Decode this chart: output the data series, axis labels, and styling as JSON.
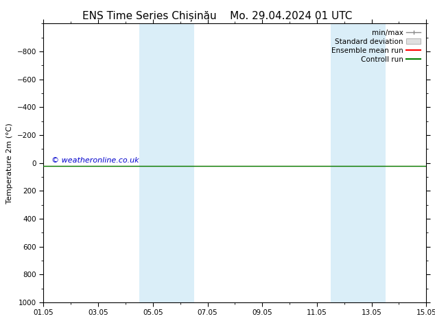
{
  "title_left": "ENS Time Series Chișinău",
  "title_right": "Mo. 29.04.2024 01 UTC",
  "ylabel": "Temperature 2m (°C)",
  "xlim": [
    0,
    14
  ],
  "ylim_bottom": 1000,
  "ylim_top": -1000,
  "yticks": [
    -800,
    -600,
    -400,
    -200,
    0,
    200,
    400,
    600,
    800,
    1000
  ],
  "xtick_positions": [
    0,
    2,
    4,
    6,
    8,
    10,
    12,
    14
  ],
  "xtick_labels": [
    "01.05",
    "03.05",
    "05.05",
    "07.05",
    "09.05",
    "11.05",
    "13.05",
    "15.05"
  ],
  "shaded_bands": [
    {
      "xmin": 3.5,
      "xmax": 5.5
    },
    {
      "xmin": 10.5,
      "xmax": 12.5
    }
  ],
  "shade_color": "#daeef8",
  "control_run_y": 20,
  "ensemble_mean_y": 20,
  "control_run_color": "#008000",
  "ensemble_mean_color": "#ff0000",
  "watermark": "© weatheronline.co.uk",
  "watermark_color": "#0000cc",
  "background_color": "#ffffff",
  "plot_background": "#ffffff",
  "title_fontsize": 11,
  "axis_label_fontsize": 8,
  "tick_fontsize": 7.5,
  "watermark_fontsize": 8,
  "legend_fontsize": 7.5
}
